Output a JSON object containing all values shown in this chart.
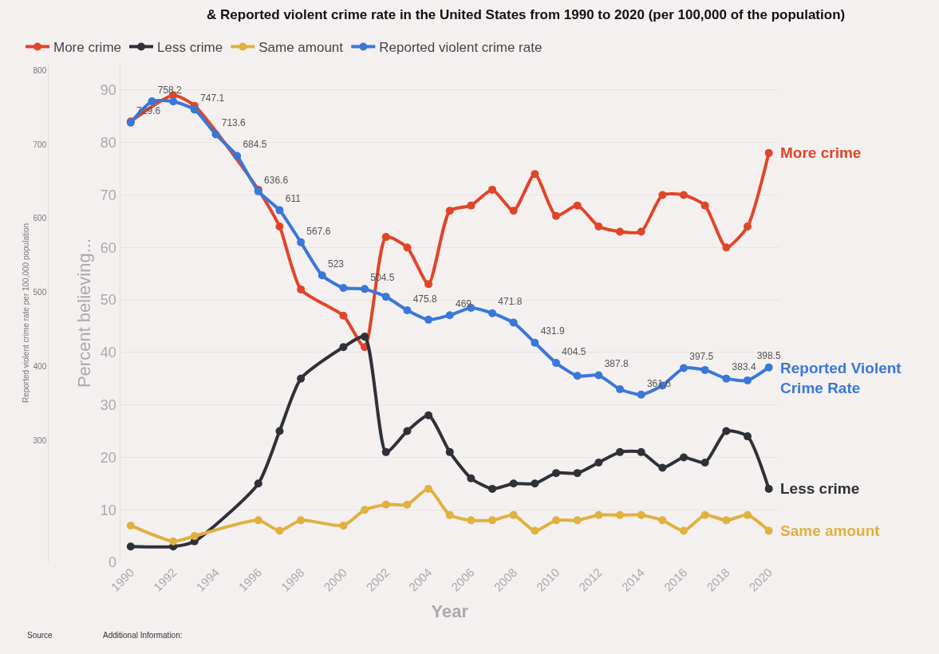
{
  "chart_data": {
    "type": "line",
    "title": "& Reported violent crime rate in the United States from 1990 to 2020 (per 100,000 of the population)",
    "xlabel": "Year",
    "ylabel": "Percent believing...",
    "y2label": "Reported violent crime rate per 100,000 population",
    "series": [
      {
        "name": "More crime",
        "color": "#e0452a",
        "x": [
          1990,
          1992,
          1993,
          1996,
          1997,
          1998,
          2000,
          2001,
          2002,
          2003,
          2004,
          2005,
          2006,
          2007,
          2008,
          2009,
          2010,
          2011,
          2012,
          2013,
          2014,
          2015,
          2016,
          2017,
          2018,
          2019,
          2020
        ],
        "values": [
          84,
          89,
          87,
          71,
          64,
          52,
          47,
          41,
          62,
          60,
          53,
          67,
          68,
          71,
          67,
          74,
          66,
          68,
          64,
          63,
          63,
          70,
          70,
          68,
          60,
          64,
          78
        ]
      },
      {
        "name": "Less crime",
        "color": "#2e3138",
        "x": [
          1990,
          1992,
          1993,
          1996,
          1997,
          1998,
          2000,
          2001,
          2002,
          2003,
          2004,
          2005,
          2006,
          2007,
          2008,
          2009,
          2010,
          2011,
          2012,
          2013,
          2014,
          2015,
          2016,
          2017,
          2018,
          2019,
          2020
        ],
        "values": [
          3,
          3,
          4,
          15,
          25,
          35,
          41,
          43,
          21,
          25,
          28,
          21,
          16,
          14,
          15,
          15,
          17,
          17,
          19,
          21,
          21,
          18,
          20,
          19,
          25,
          24,
          14
        ]
      },
      {
        "name": "Same amount",
        "color": "#e0b13f",
        "x": [
          1990,
          1992,
          1993,
          1996,
          1997,
          1998,
          2000,
          2001,
          2002,
          2003,
          2004,
          2005,
          2006,
          2007,
          2008,
          2009,
          2010,
          2011,
          2012,
          2013,
          2014,
          2015,
          2016,
          2017,
          2018,
          2019,
          2020
        ],
        "values": [
          7,
          4,
          5,
          8,
          6,
          8,
          7,
          10,
          11,
          11,
          14,
          9,
          8,
          8,
          9,
          6,
          8,
          8,
          9,
          9,
          9,
          8,
          6,
          9,
          8,
          9,
          6
        ]
      },
      {
        "name": "Reported violent crime rate",
        "color": "#3a78d8",
        "axis": "y2",
        "x": [
          1990,
          1991,
          1992,
          1993,
          1994,
          1995,
          1996,
          1997,
          1998,
          1999,
          2000,
          2001,
          2002,
          2003,
          2004,
          2005,
          2006,
          2007,
          2008,
          2009,
          2010,
          2011,
          2012,
          2013,
          2014,
          2015,
          2016,
          2017,
          2018,
          2019,
          2020
        ],
        "values": [
          729.6,
          758.2,
          758,
          747.1,
          713.6,
          684.5,
          636.6,
          611,
          567.6,
          523,
          506,
          504.5,
          494,
          475.8,
          463,
          469,
          479,
          471.8,
          459,
          431.9,
          404.5,
          387,
          387.8,
          369,
          361.6,
          374,
          397.5,
          395,
          383.4,
          381,
          398.5
        ],
        "value_labels": [
          "729.6",
          "758.2",
          null,
          "747.1",
          "713.6",
          "684.5",
          "636.6",
          "611",
          "567.6",
          "523",
          null,
          "504.5",
          null,
          "475.8",
          null,
          "469",
          null,
          "471.8",
          null,
          "431.9",
          "404.5",
          null,
          "387.8",
          null,
          "361.6",
          null,
          "397.5",
          null,
          "383.4",
          null,
          "398.5"
        ]
      }
    ],
    "xlim": [
      1989.5,
      2020.5
    ],
    "xticks": [
      1990,
      1992,
      1994,
      1996,
      1998,
      2000,
      2002,
      2004,
      2006,
      2008,
      2010,
      2012,
      2014,
      2016,
      2018,
      2020
    ],
    "ylim": [
      0,
      95
    ],
    "yticks": [
      0,
      10,
      20,
      30,
      40,
      50,
      60,
      70,
      80,
      90
    ],
    "y2lim": [
      135,
      809
    ],
    "y2ticks": [
      300,
      400,
      500,
      600,
      700,
      800
    ],
    "marker": "circle",
    "line_style": "solid",
    "grid": "y",
    "legend": "top left",
    "annotations": [
      "More crime",
      "Less crime",
      "Same amount",
      "Reported Violent Crime Rate",
      "Source",
      "Additional Information:"
    ]
  }
}
